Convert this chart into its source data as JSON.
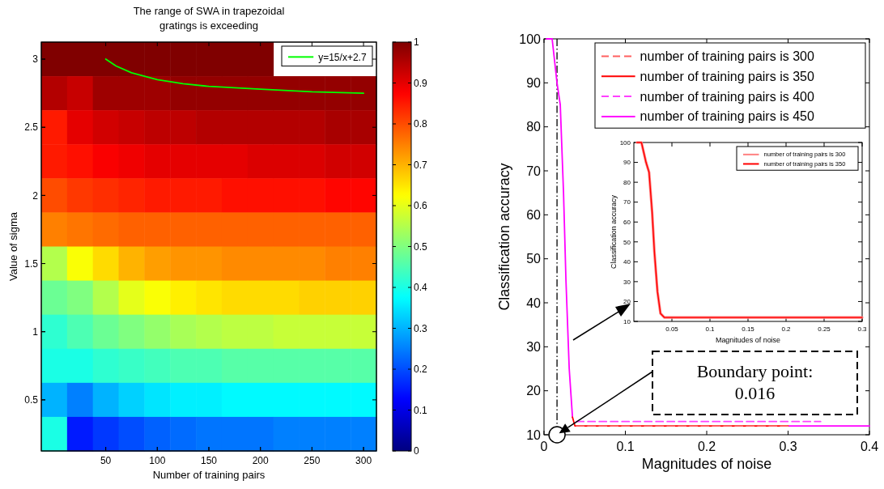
{
  "chart_data": [
    {
      "type": "heatmap",
      "title": "The range of SWA in trapezoidal\ngratings is exceeding",
      "xlabel": "Number of training pairs",
      "ylabel": "Value of sigma",
      "categories": [
        null,
        null,
        "50",
        null,
        "100",
        null,
        "150",
        null,
        "200",
        null,
        "250",
        null,
        "300"
      ],
      "y_categories": [
        "3",
        null,
        "2.5",
        null,
        "2",
        null,
        "1.5",
        null,
        "1",
        null,
        "0.5",
        null
      ],
      "clim": [
        0,
        1
      ],
      "cticks": [
        0,
        0.1,
        0.2,
        0.3,
        0.4,
        0.5,
        0.6,
        0.7,
        0.8,
        0.9,
        1
      ],
      "cells": [
        [
          1,
          1,
          1,
          1,
          1,
          1,
          1,
          1,
          1,
          null,
          null,
          null,
          null
        ],
        [
          0.95,
          0.93,
          0.97,
          0.97,
          0.97,
          0.98,
          0.98,
          0.98,
          0.98,
          0.98,
          0.98,
          0.98,
          0.98
        ],
        [
          0.85,
          0.9,
          0.92,
          0.93,
          0.94,
          0.94,
          0.95,
          0.95,
          0.95,
          0.95,
          0.95,
          0.96,
          0.96
        ],
        [
          0.85,
          0.86,
          0.88,
          0.89,
          0.9,
          0.9,
          0.9,
          0.9,
          0.91,
          0.91,
          0.91,
          0.92,
          0.92
        ],
        [
          0.8,
          0.82,
          0.83,
          0.84,
          0.85,
          0.85,
          0.85,
          0.86,
          0.86,
          0.86,
          0.86,
          0.87,
          0.87
        ],
        [
          0.75,
          0.76,
          0.77,
          0.78,
          0.78,
          0.78,
          0.78,
          0.78,
          0.78,
          0.78,
          0.78,
          0.78,
          0.78
        ],
        [
          0.55,
          0.62,
          0.66,
          0.7,
          0.72,
          0.73,
          0.73,
          0.74,
          0.74,
          0.74,
          0.74,
          0.75,
          0.75
        ],
        [
          0.48,
          0.5,
          0.55,
          0.6,
          0.62,
          0.64,
          0.65,
          0.66,
          0.66,
          0.66,
          0.67,
          0.67,
          0.67
        ],
        [
          0.42,
          0.45,
          0.48,
          0.5,
          0.52,
          0.54,
          0.55,
          0.56,
          0.56,
          0.57,
          0.57,
          0.57,
          0.57
        ],
        [
          0.4,
          0.4,
          0.42,
          0.43,
          0.44,
          0.45,
          0.45,
          0.46,
          0.46,
          0.46,
          0.46,
          0.46,
          0.46
        ],
        [
          0.3,
          0.25,
          0.3,
          0.33,
          0.35,
          0.36,
          0.36,
          0.37,
          0.37,
          0.37,
          0.37,
          0.37,
          0.37
        ],
        [
          0.4,
          0.15,
          0.18,
          0.2,
          0.22,
          0.23,
          0.24,
          0.24,
          0.24,
          0.25,
          0.25,
          0.25,
          0.25
        ]
      ]
    },
    {
      "type": "line",
      "xlabel": "Magnitudes of noise",
      "ylabel": "Classification accuracy",
      "xlim": [
        0,
        0.4
      ],
      "xticks": [
        0,
        0.1,
        0.2,
        0.3,
        0.4
      ],
      "ylim": [
        10,
        100
      ],
      "yticks": [
        10,
        20,
        30,
        40,
        50,
        60,
        70,
        80,
        90,
        100
      ],
      "series": [
        {
          "name": "number of training pairs is 300",
          "color": "#ff6060",
          "line_style": "dashed",
          "x": [
            0.04,
            0.3
          ],
          "values": [
            12,
            12
          ]
        },
        {
          "name": "number of training pairs is 350",
          "color": "#ff0000",
          "line_style": "solid",
          "x": [
            0.035,
            0.038,
            0.3
          ],
          "values": [
            14,
            12,
            12
          ]
        },
        {
          "name": "number of training pairs is 400",
          "color": "#ff40ff",
          "line_style": "dashed",
          "x": [
            0.04,
            0.34
          ],
          "values": [
            13,
            13
          ]
        },
        {
          "name": "number of training pairs is 450",
          "color": "#ff00ff",
          "line_style": "solid",
          "x": [
            0.003,
            0.01,
            0.013,
            0.016,
            0.02,
            0.024,
            0.027,
            0.031,
            0.035,
            0.2,
            0.3,
            0.4
          ],
          "values": [
            100,
            100,
            95,
            90,
            85,
            65,
            45,
            25,
            14,
            null,
            12,
            12
          ]
        }
      ],
      "ref_lines": [
        {
          "axis": "x",
          "value": 0.016,
          "line_style": "dashed",
          "color": "#000000"
        }
      ],
      "annotations": [
        "Boundary point:\n0.016"
      ],
      "legend": "top right"
    },
    {
      "type": "line",
      "xlabel": "Magnitudes of noise",
      "ylabel": "Classification accuracy",
      "xlim": [
        0,
        0.3
      ],
      "xticks": [
        0.05,
        0.1,
        0.15,
        0.2,
        0.25,
        0.3
      ],
      "ylim": [
        10,
        100
      ],
      "yticks": [
        10,
        20,
        30,
        40,
        50,
        60,
        70,
        80,
        90,
        100
      ],
      "series": [
        {
          "name": "number of training pairs is 300",
          "color": "#ff8080",
          "line_style": "solid",
          "x": [
            0.004,
            0.01,
            0.013,
            0.016,
            0.02,
            0.024,
            0.027,
            0.031,
            0.035,
            0.04,
            0.3
          ],
          "values": [
            100,
            100,
            95,
            90,
            85,
            65,
            45,
            25,
            14,
            12,
            12
          ]
        },
        {
          "name": "number of training pairs is 350",
          "color": "#ff0000",
          "line_style": "solid",
          "x": [
            0.004,
            0.01,
            0.013,
            0.016,
            0.02,
            0.024,
            0.027,
            0.031,
            0.035,
            0.04,
            0.3
          ],
          "values": [
            100,
            100,
            95,
            90,
            85,
            65,
            45,
            25,
            14,
            12,
            12
          ]
        }
      ],
      "legend": "top right"
    },
    {
      "type": "line",
      "xlim": [
        -12.5,
        312.5
      ],
      "ylim": [
        0.125,
        3.125
      ],
      "xticks": [
        50,
        100,
        150,
        200,
        250,
        300
      ],
      "yticks": [
        0.5,
        1,
        1.5,
        2,
        2.5,
        3
      ],
      "tick_labels": false,
      "series": [
        {
          "name": "y=15/x+2.7",
          "color": "#00ff00",
          "line_style": "solid",
          "x": [
            50,
            60,
            75,
            100,
            125,
            150,
            200,
            250,
            300
          ],
          "values": [
            3,
            2.95,
            2.9,
            2.85,
            2.82,
            2.8,
            2.78,
            2.76,
            2.75
          ]
        }
      ],
      "legend": "top right"
    }
  ]
}
